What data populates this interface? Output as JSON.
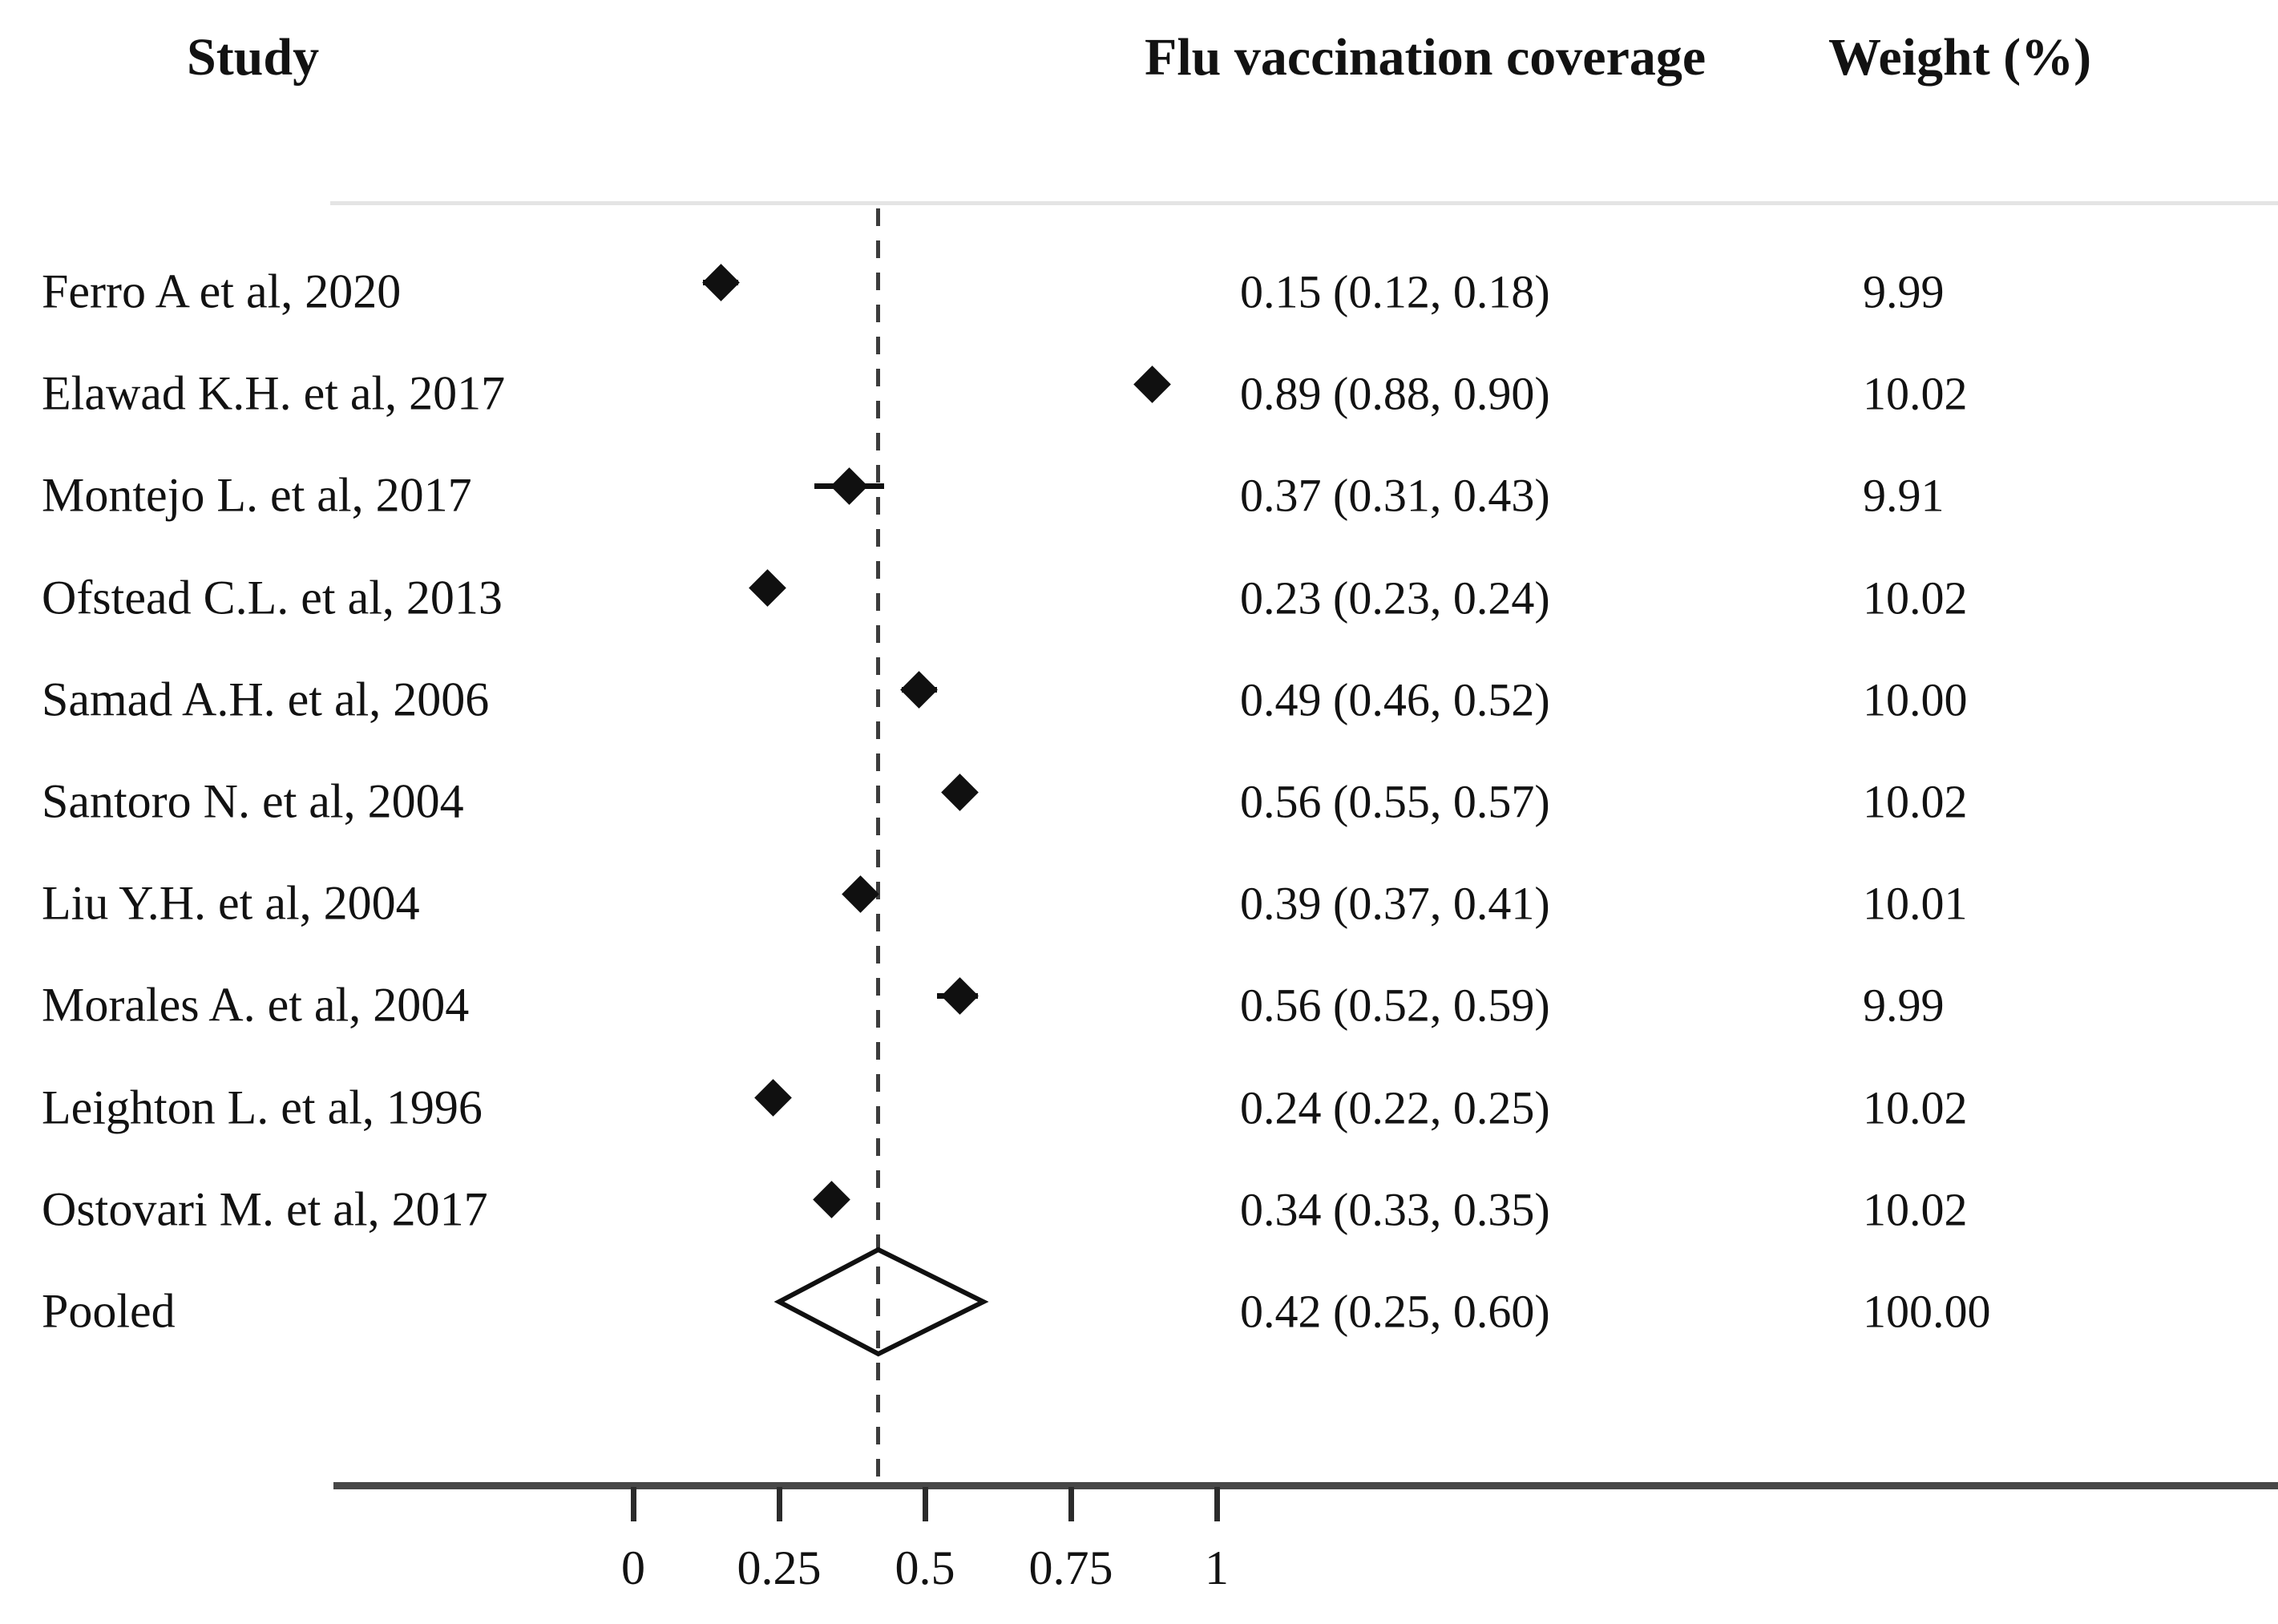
{
  "header": {
    "study": "Study",
    "coverage": "Flu vaccination coverage",
    "weight": "Weight (%)"
  },
  "axis": {
    "tick_labels": [
      "0",
      "0.25",
      "0.5",
      "0.75",
      "1"
    ],
    "tick_values": [
      0,
      0.25,
      0.5,
      0.75,
      1
    ]
  },
  "colors": {
    "background": "#ffffff",
    "text": "#121212",
    "marker": "#101010",
    "axis_line": "#474747",
    "tick": "#2b2b2b",
    "dashed_reference_line": "#3c3c3c",
    "top_rule": "#e4e4e4"
  },
  "chart_data": {
    "type": "scatter",
    "subtype": "forest-plot",
    "xlabel": "",
    "ylabel": "",
    "x_ticks": [
      0,
      0.25,
      0.5,
      0.75,
      1
    ],
    "grid": false,
    "reference_line_x": 0.42,
    "columns": [
      "Study",
      "Flu vaccination coverage",
      "Weight (%)"
    ],
    "studies": [
      {
        "label": "Ferro A et al, 2020",
        "est": 0.15,
        "lo": 0.12,
        "hi": 0.18,
        "estimate_label": "0.15 (0.12, 0.18)",
        "weight": 9.99,
        "weight_label": "9.99"
      },
      {
        "label": "Elawad K.H. et al, 2017",
        "est": 0.89,
        "lo": 0.88,
        "hi": 0.9,
        "estimate_label": "0.89 (0.88, 0.90)",
        "weight": 10.02,
        "weight_label": "10.02"
      },
      {
        "label": "Montejo L. et al, 2017",
        "est": 0.37,
        "lo": 0.31,
        "hi": 0.43,
        "estimate_label": "0.37 (0.31, 0.43)",
        "weight": 9.91,
        "weight_label": "9.91"
      },
      {
        "label": "Ofstead C.L. et al, 2013",
        "est": 0.23,
        "lo": 0.23,
        "hi": 0.24,
        "estimate_label": "0.23 (0.23, 0.24)",
        "weight": 10.02,
        "weight_label": "10.02"
      },
      {
        "label": "Samad A.H. et al, 2006",
        "est": 0.49,
        "lo": 0.46,
        "hi": 0.52,
        "estimate_label": "0.49 (0.46, 0.52)",
        "weight": 10.0,
        "weight_label": "10.00"
      },
      {
        "label": "Santoro N. et al, 2004",
        "est": 0.56,
        "lo": 0.55,
        "hi": 0.57,
        "estimate_label": "0.56 (0.55, 0.57)",
        "weight": 10.02,
        "weight_label": "10.02"
      },
      {
        "label": "Liu Y.H. et al, 2004",
        "est": 0.39,
        "lo": 0.37,
        "hi": 0.41,
        "estimate_label": "0.39 (0.37, 0.41)",
        "weight": 10.01,
        "weight_label": "10.01"
      },
      {
        "label": "Morales A. et al, 2004",
        "est": 0.56,
        "lo": 0.52,
        "hi": 0.59,
        "estimate_label": "0.56 (0.52, 0.59)",
        "weight": 9.99,
        "weight_label": "9.99"
      },
      {
        "label": "Leighton L. et al, 1996",
        "est": 0.24,
        "lo": 0.22,
        "hi": 0.25,
        "estimate_label": "0.24 (0.22, 0.25)",
        "weight": 10.02,
        "weight_label": "10.02"
      },
      {
        "label": "Ostovari M. et al, 2017",
        "est": 0.34,
        "lo": 0.33,
        "hi": 0.35,
        "estimate_label": "0.34 (0.33, 0.35)",
        "weight": 10.02,
        "weight_label": "10.02"
      }
    ],
    "pooled": {
      "label": "Pooled",
      "est": 0.42,
      "lo": 0.25,
      "hi": 0.6,
      "estimate_label": "0.42 (0.25, 0.60)",
      "weight": 100.0,
      "weight_label": "100.00"
    }
  }
}
